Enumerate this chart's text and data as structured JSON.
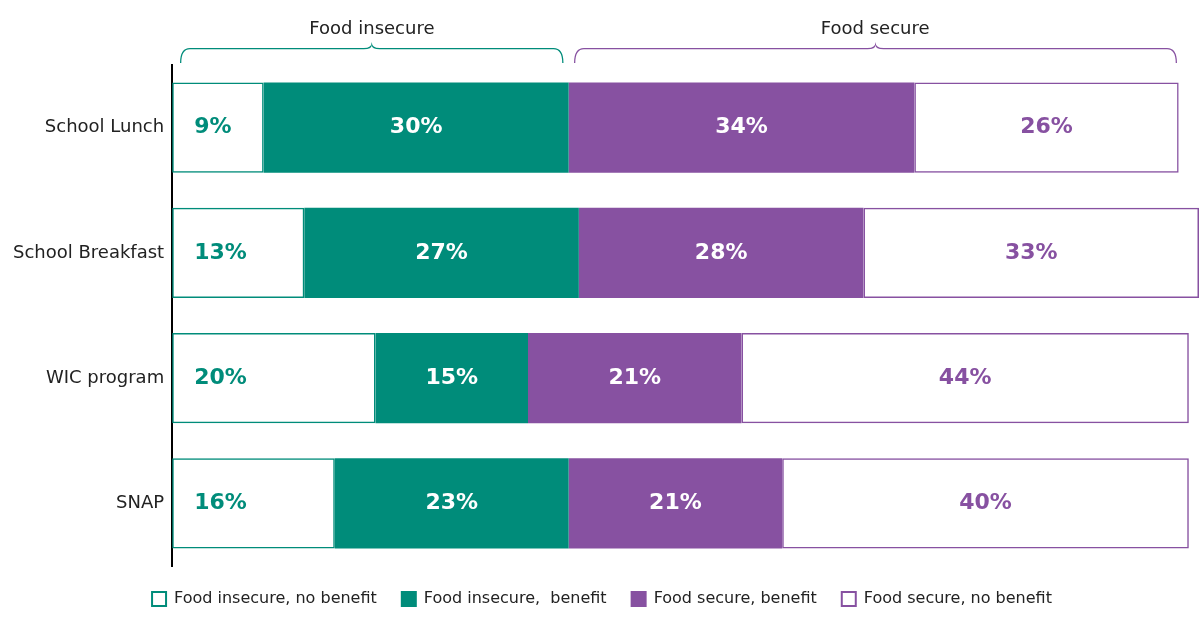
{
  "chart_data": {
    "type": "bar",
    "orientation": "horizontal",
    "stacked": true,
    "data_labels": true,
    "legend": "bottom",
    "categories": [
      "School Lunch",
      "School Breakfast",
      "WIC program",
      "SNAP"
    ],
    "series": [
      {
        "name": "Food insecure, no benefit",
        "color": "#008c7a",
        "values": [
          9,
          13,
          20,
          16
        ],
        "value_labels": [
          "9%",
          "13%",
          "20%",
          "16%"
        ]
      },
      {
        "name": "Food insecure,  benefit",
        "color": "#008c7a",
        "values": [
          30,
          27,
          15,
          23
        ],
        "value_labels": [
          "30%",
          "27%",
          "15%",
          "23%"
        ]
      },
      {
        "name": "Food secure, benefit",
        "color": "#8751a1",
        "values": [
          34,
          28,
          21,
          21
        ],
        "value_labels": [
          "34%",
          "28%",
          "21%",
          "21%"
        ]
      },
      {
        "name": "Food secure, no benefit",
        "color": "#8751a1",
        "values": [
          26,
          33,
          44,
          40
        ],
        "value_labels": [
          "26%",
          "33%",
          "44%",
          "40%"
        ]
      }
    ],
    "annotations": [
      "Food insecure",
      "Food secure"
    ]
  }
}
